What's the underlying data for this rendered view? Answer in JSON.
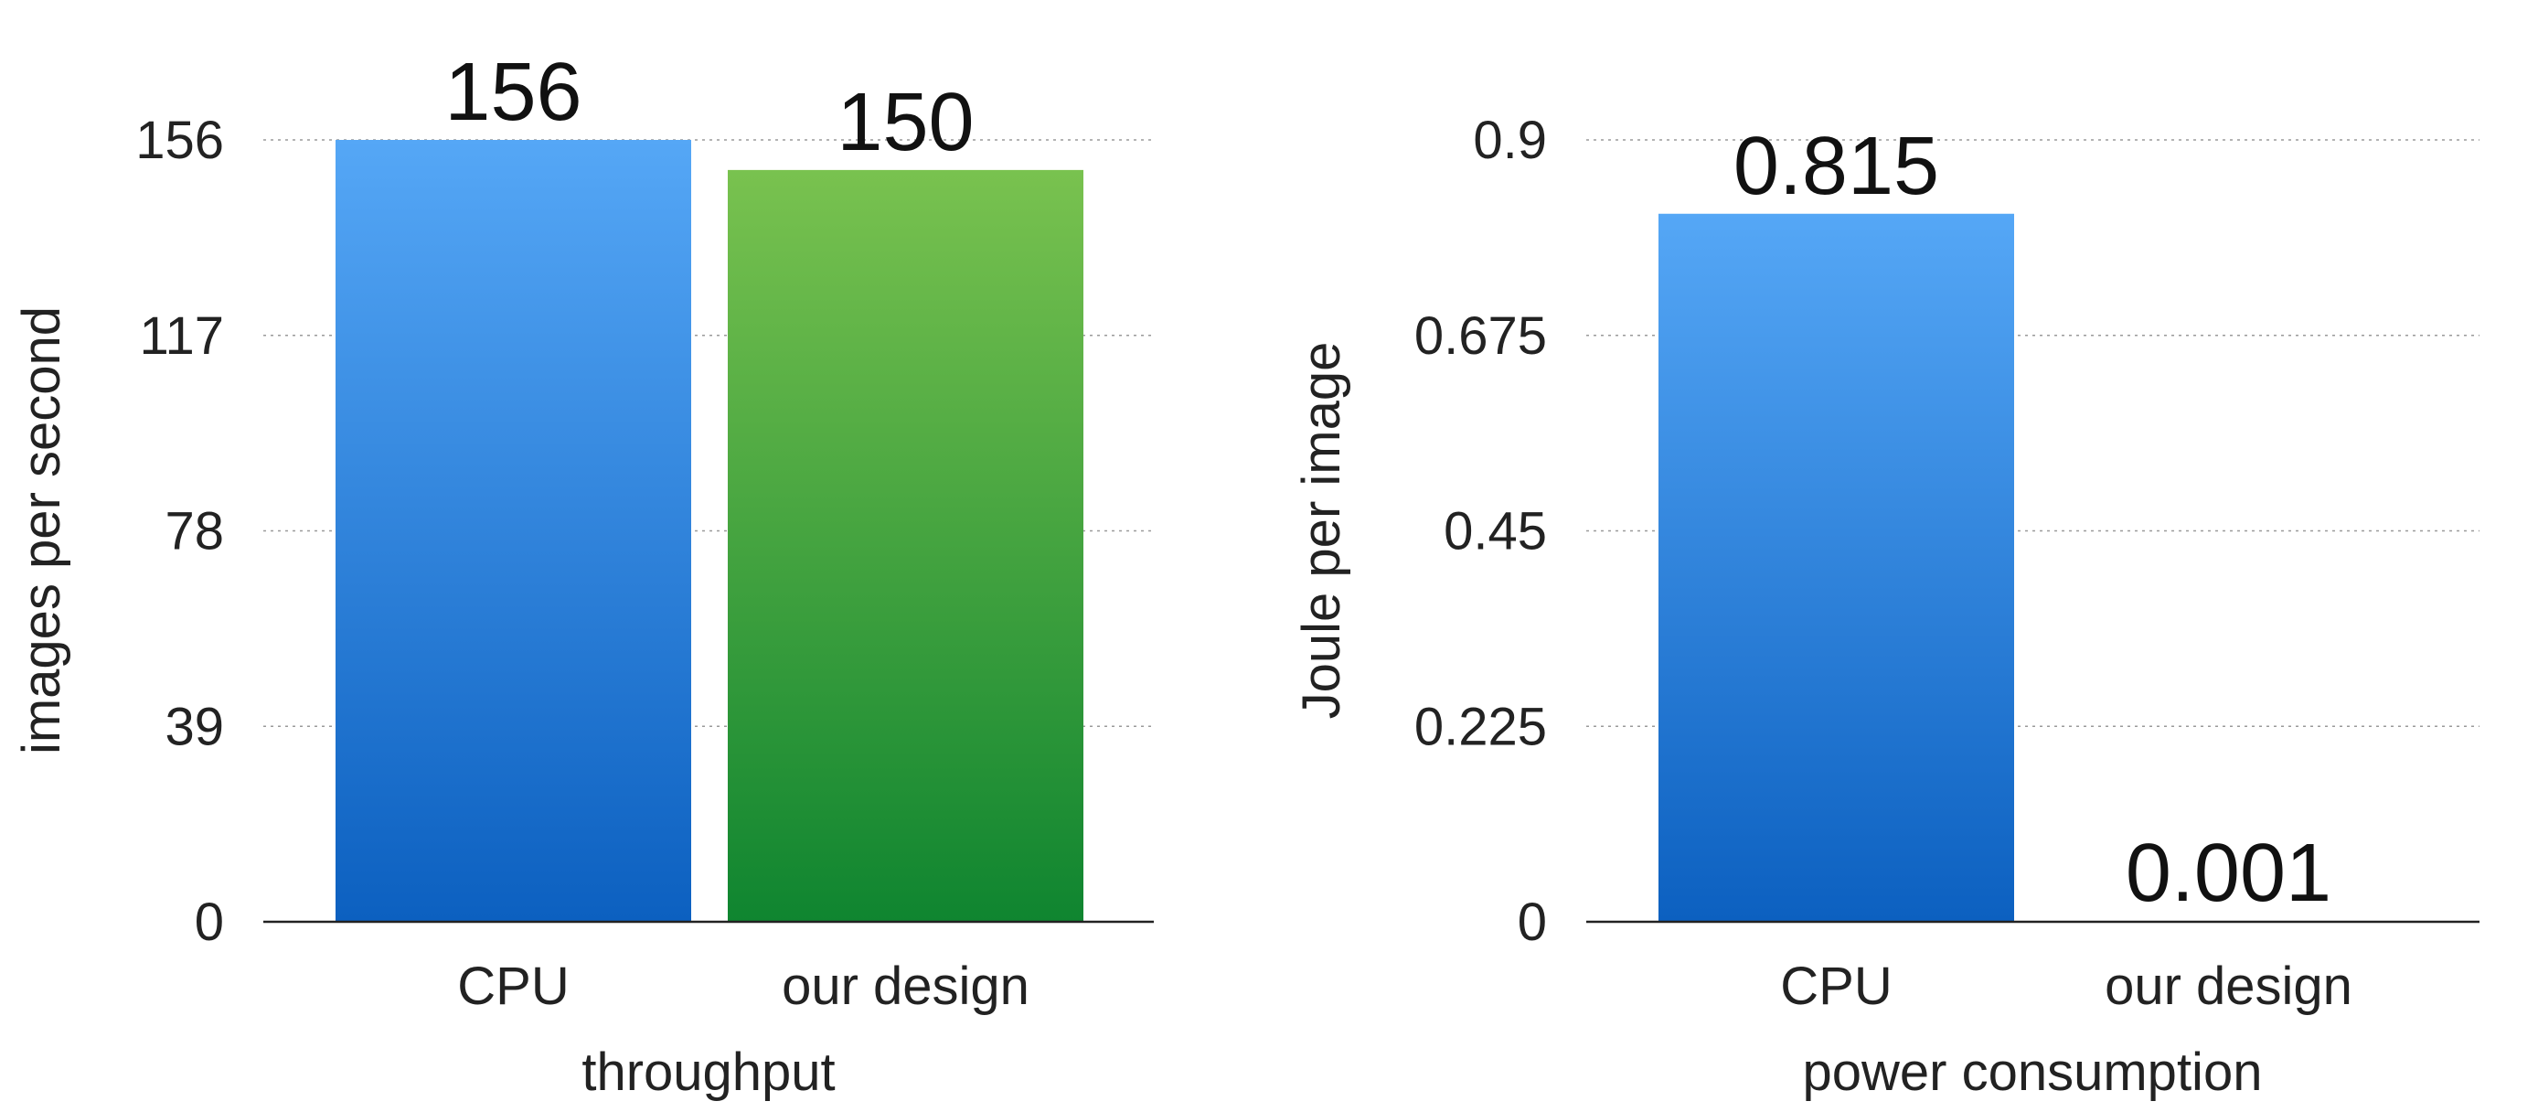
{
  "colors": {
    "cpu_top": "#55a7f6",
    "cpu_bottom": "#0c60c0",
    "design_top": "#79c24f",
    "design_bottom": "#0f8530"
  },
  "chart_data": [
    {
      "type": "bar",
      "categories": [
        "CPU",
        "our design"
      ],
      "values": [
        156,
        150
      ],
      "value_labels": [
        "156",
        "150"
      ],
      "yticks": [
        "0",
        "39",
        "78",
        "117",
        "156"
      ],
      "ylim": [
        0,
        156
      ],
      "grid": true,
      "xlabel": "throughput",
      "ylabel": "images per second"
    },
    {
      "type": "bar",
      "categories": [
        "CPU",
        "our design"
      ],
      "values": [
        0.815,
        0.001
      ],
      "value_labels": [
        "0.815",
        "0.001"
      ],
      "yticks": [
        "0",
        "0.225",
        "0.45",
        "0.675",
        "0.9"
      ],
      "ylim": [
        0,
        0.9
      ],
      "grid": true,
      "xlabel": "power consumption",
      "ylabel": "Joule per image"
    }
  ]
}
